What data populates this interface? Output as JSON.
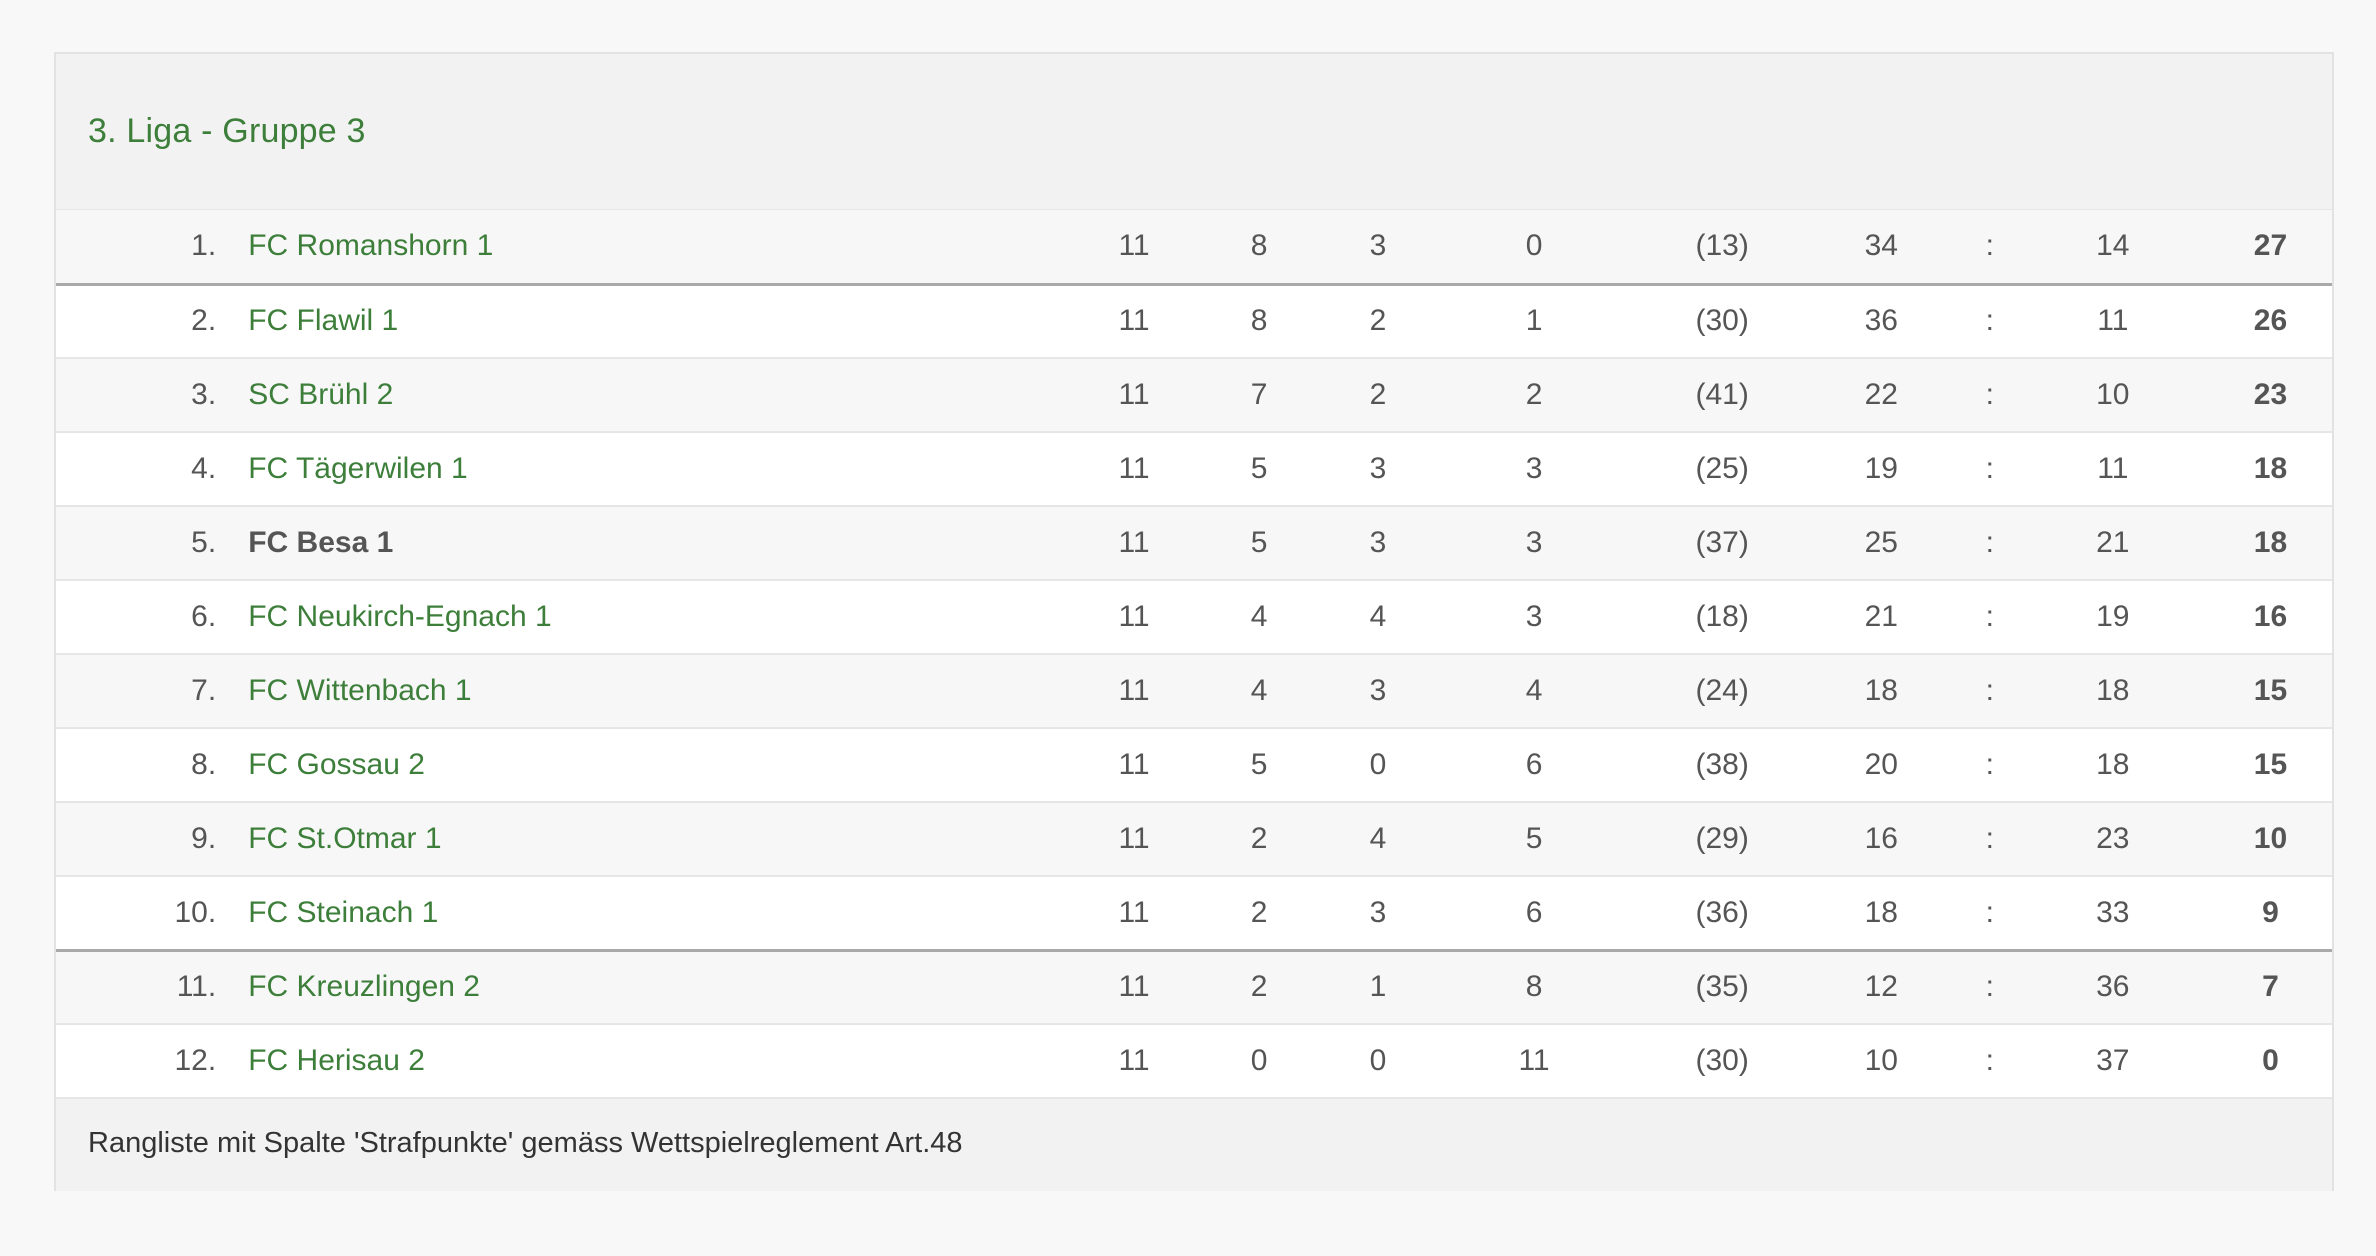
{
  "group_title": "3. Liga - Gruppe 3",
  "footer_note": "Rangliste mit Spalte 'Strafpunkte' gemäss Wettspielreglement Art.48",
  "colors": {
    "team_link": "#3d7f3a",
    "text": "#555555",
    "header_bg": "#f2f2f2",
    "separator": "#a9a9a9"
  },
  "standings": [
    {
      "rank": "1.",
      "team": "FC Romanshorn 1",
      "played": "11",
      "won": "8",
      "drawn": "3",
      "lost": "0",
      "penalty": "(13)",
      "goals_for": "34",
      "colon": ":",
      "goals_against": "14",
      "points": "27"
    },
    {
      "rank": "2.",
      "team": "FC Flawil 1",
      "played": "11",
      "won": "8",
      "drawn": "2",
      "lost": "1",
      "penalty": "(30)",
      "goals_for": "36",
      "colon": ":",
      "goals_against": "11",
      "points": "26"
    },
    {
      "rank": "3.",
      "team": "SC Brühl 2",
      "played": "11",
      "won": "7",
      "drawn": "2",
      "lost": "2",
      "penalty": "(41)",
      "goals_for": "22",
      "colon": ":",
      "goals_against": "10",
      "points": "23"
    },
    {
      "rank": "4.",
      "team": "FC Tägerwilen 1",
      "played": "11",
      "won": "5",
      "drawn": "3",
      "lost": "3",
      "penalty": "(25)",
      "goals_for": "19",
      "colon": ":",
      "goals_against": "11",
      "points": "18"
    },
    {
      "rank": "5.",
      "team": "FC Besa 1",
      "played": "11",
      "won": "5",
      "drawn": "3",
      "lost": "3",
      "penalty": "(37)",
      "goals_for": "25",
      "colon": ":",
      "goals_against": "21",
      "points": "18"
    },
    {
      "rank": "6.",
      "team": "FC Neukirch-Egnach 1",
      "played": "11",
      "won": "4",
      "drawn": "4",
      "lost": "3",
      "penalty": "(18)",
      "goals_for": "21",
      "colon": ":",
      "goals_against": "19",
      "points": "16"
    },
    {
      "rank": "7.",
      "team": "FC Wittenbach 1",
      "played": "11",
      "won": "4",
      "drawn": "3",
      "lost": "4",
      "penalty": "(24)",
      "goals_for": "18",
      "colon": ":",
      "goals_against": "18",
      "points": "15"
    },
    {
      "rank": "8.",
      "team": "FC Gossau 2",
      "played": "11",
      "won": "5",
      "drawn": "0",
      "lost": "6",
      "penalty": "(38)",
      "goals_for": "20",
      "colon": ":",
      "goals_against": "18",
      "points": "15"
    },
    {
      "rank": "9.",
      "team": "FC St.Otmar 1",
      "played": "11",
      "won": "2",
      "drawn": "4",
      "lost": "5",
      "penalty": "(29)",
      "goals_for": "16",
      "colon": ":",
      "goals_against": "23",
      "points": "10"
    },
    {
      "rank": "10.",
      "team": "FC Steinach 1",
      "played": "11",
      "won": "2",
      "drawn": "3",
      "lost": "6",
      "penalty": "(36)",
      "goals_for": "18",
      "colon": ":",
      "goals_against": "33",
      "points": "9"
    },
    {
      "rank": "11.",
      "team": "FC Kreuzlingen 2",
      "played": "11",
      "won": "2",
      "drawn": "1",
      "lost": "8",
      "penalty": "(35)",
      "goals_for": "12",
      "colon": ":",
      "goals_against": "36",
      "points": "7"
    },
    {
      "rank": "12.",
      "team": "FC Herisau 2",
      "played": "11",
      "won": "0",
      "drawn": "0",
      "lost": "11",
      "penalty": "(30)",
      "goals_for": "10",
      "colon": ":",
      "goals_against": "37",
      "points": "0"
    }
  ]
}
